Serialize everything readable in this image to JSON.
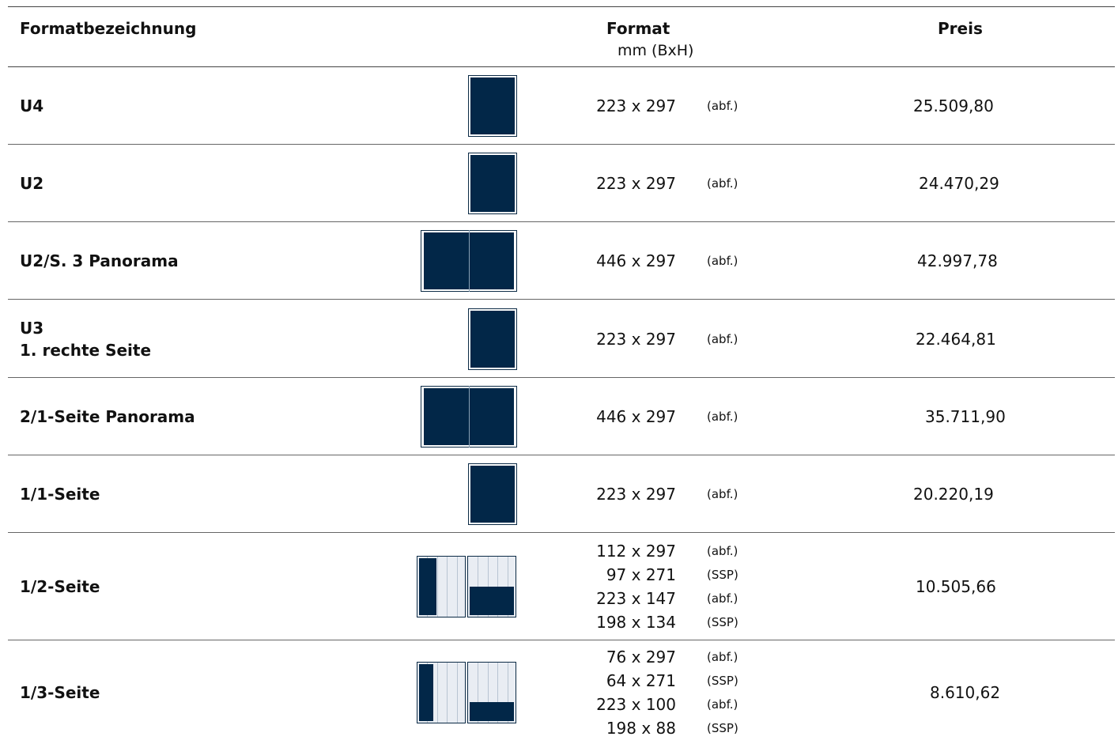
{
  "header": {
    "name_label": "Formatbezeichnung",
    "format_label": "Format",
    "format_unit": "mm (BxH)",
    "price_label": "Preis"
  },
  "rows": [
    {
      "name": "U4",
      "pictogram": "single-page-full",
      "formats": [
        {
          "dim": "223 x 297",
          "note": "(abf.)"
        }
      ],
      "price": "25.509,80"
    },
    {
      "name": "U2",
      "pictogram": "single-page-full",
      "formats": [
        {
          "dim": "223 x 297",
          "note": "(abf.)"
        }
      ],
      "price": "24.470,29"
    },
    {
      "name": "U2/S. 3 Panorama",
      "pictogram": "spread-full",
      "formats": [
        {
          "dim": "446 x 297",
          "note": "(abf.)"
        }
      ],
      "price": "42.997,78"
    },
    {
      "name": "U3\n1. rechte Seite",
      "pictogram": "single-page-full",
      "formats": [
        {
          "dim": "223 x 297",
          "note": "(abf.)"
        }
      ],
      "price": "22.464,81"
    },
    {
      "name": "2/1-Seite Panorama",
      "pictogram": "spread-full",
      "formats": [
        {
          "dim": "446 x 297",
          "note": "(abf.)"
        }
      ],
      "price": "35.711,90"
    },
    {
      "name": "1/1-Seite",
      "pictogram": "single-page-full",
      "formats": [
        {
          "dim": "223 x 297",
          "note": "(abf.)"
        }
      ],
      "price": "20.220,19"
    },
    {
      "name": "1/2-Seite",
      "pictogram": "half-page-options",
      "formats": [
        {
          "dim": "112 x 297",
          "note": "(abf.)"
        },
        {
          "dim": "97 x 271",
          "note": "(SSP)"
        },
        {
          "dim": "223 x 147",
          "note": "(abf.)"
        },
        {
          "dim": "198 x 134",
          "note": "(SSP)"
        }
      ],
      "price": "10.505,66"
    },
    {
      "name": "1/3-Seite",
      "pictogram": "third-page-options",
      "formats": [
        {
          "dim": "76 x 297",
          "note": "(abf.)"
        },
        {
          "dim": "64 x 271",
          "note": "(SSP)"
        },
        {
          "dim": "223 x 100",
          "note": "(abf.)"
        },
        {
          "dim": "198 x 88",
          "note": "(SSP)"
        }
      ],
      "price": "8.610,62"
    }
  ],
  "colors": {
    "fill": "#022748",
    "grid_bg": "#e9edf3",
    "rule": "#444444"
  }
}
